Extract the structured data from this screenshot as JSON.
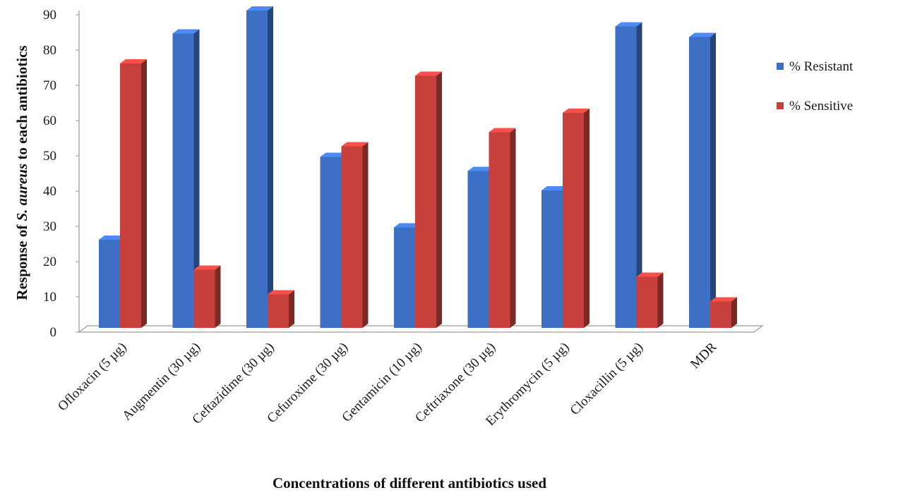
{
  "chart_data": {
    "type": "bar",
    "categories": [
      "Ofloxacin (5 µg)",
      "Augmentin (30 µg)",
      "Ceftazidime (30 µg)",
      "Cefuroxime (30 µg)",
      "Gentamicin (10 µg)",
      "Ceftriaxone (30 µg)",
      "Erythromycin (5 µg)",
      "Cloxacillin (5 µg)",
      "MDR"
    ],
    "series": [
      {
        "name": "% Resistant",
        "values": [
          25,
          83.5,
          90,
          48.5,
          28.5,
          44.5,
          39,
          85.5,
          82.5
        ],
        "color": "#3d6fc4"
      },
      {
        "name": "% Sensitive",
        "values": [
          75,
          16.5,
          9.5,
          51.5,
          71.5,
          55.5,
          61,
          14.5,
          7.5
        ],
        "color": "#c8403c"
      }
    ],
    "title": "",
    "xlabel": "Concentrations of different antibiotics used",
    "ylabel_parts": [
      "Response of ",
      "S. aureus",
      " to each antibiotics"
    ],
    "ylim": [
      0,
      90
    ],
    "yticks": [
      0,
      10,
      20,
      30,
      40,
      50,
      60,
      70,
      80,
      90
    ],
    "grid": false,
    "legend_position": "right",
    "style": "3d-clustered-bar"
  }
}
